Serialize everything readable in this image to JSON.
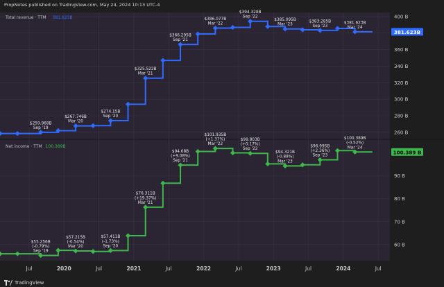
{
  "header": {
    "published_text": "PropNotes published on TradingView.com, May 24, 2024 10:13 UTC-4"
  },
  "brand": {
    "logo_icon": "tradingview-logo-icon",
    "name": "TradingView"
  },
  "colors": {
    "background": "#1e1e1e",
    "plot_background": "#2b2533",
    "revenue": "#2f6bff",
    "net_income": "#3eb84a",
    "grid": "#3a3441",
    "axis_text": "#c9c9c9"
  },
  "chart_data": [
    {
      "type": "line",
      "step": true,
      "panel": "top",
      "title": "Total revenue · TTM",
      "title_value": "381.623B",
      "last_value_label": "381.623B",
      "ylim": [
        254,
        405
      ],
      "y_ticks": [
        260,
        280,
        300,
        320,
        340,
        360,
        380,
        400
      ],
      "y_tick_labels": [
        "260 B",
        "280 B",
        "300 B",
        "320 B",
        "340 B",
        "360 B",
        "380 B",
        "400 B"
      ],
      "series": [
        {
          "x": [
            "2019-02",
            "2019-05",
            "2019-09",
            "2019-12",
            "2020-03",
            "2020-06",
            "2020-09",
            "2020-12",
            "2021-03",
            "2021-06",
            "2021-09",
            "2021-12",
            "2022-03",
            "2022-06",
            "2022-09",
            "2022-12",
            "2023-03",
            "2023-06",
            "2023-09",
            "2023-12",
            "2024-03",
            "2024-06"
          ],
          "values": [
            258.5,
            258.5,
            259.968,
            262.0,
            267.746,
            268.0,
            274.15,
            294.0,
            325.522,
            347.0,
            366.295,
            379.0,
            386.077,
            387.0,
            394.328,
            388.0,
            385.095,
            384.0,
            383.285,
            385.7,
            381.623,
            381.623
          ]
        }
      ],
      "annotations": [
        {
          "value": "$259.968B",
          "period": "Sep '19"
        },
        {
          "value": "$267.746B",
          "period": "Mar '20"
        },
        {
          "value": "$274.15B",
          "period": "Sep '20"
        },
        {
          "value": "$325.522B",
          "period": "Mar '21"
        },
        {
          "value": "$366.295B",
          "period": "Sep '21"
        },
        {
          "value": "$386.077B",
          "period": "Mar '22"
        },
        {
          "value": "$394.328B",
          "period": "Sep '22"
        },
        {
          "value": "$385.095B",
          "period": "Mar '23"
        },
        {
          "value": "$383.285B",
          "period": "Sep '23"
        },
        {
          "value": "$381.623B",
          "period": "Mar '24"
        }
      ]
    },
    {
      "type": "line",
      "step": true,
      "panel": "bottom",
      "title": "Net income · TTM",
      "title_value": "100.389B",
      "last_value_label": "100.389 B",
      "ylim": [
        53,
        105
      ],
      "y_ticks": [
        60,
        70,
        80,
        90
      ],
      "y_tick_labels": [
        "60 B",
        "70 B",
        "80 B",
        "90 B"
      ],
      "series": [
        {
          "x": [
            "2019-02",
            "2019-05",
            "2019-09",
            "2019-12",
            "2020-03",
            "2020-06",
            "2020-09",
            "2020-12",
            "2021-03",
            "2021-06",
            "2021-09",
            "2021-12",
            "2022-03",
            "2022-06",
            "2022-09",
            "2022-12",
            "2023-03",
            "2023-06",
            "2023-09",
            "2023-12",
            "2024-03",
            "2024-06"
          ],
          "values": [
            56.0,
            56.0,
            55.256,
            57.5,
            57.215,
            57.0,
            57.411,
            63.9,
            76.311,
            86.8,
            94.68,
            100.6,
            101.935,
            100.0,
            99.803,
            95.2,
            94.321,
            94.8,
            96.995,
            101.0,
            100.389,
            100.389
          ]
        }
      ],
      "annotations": [
        {
          "value": "$55.256B",
          "change": "(-0.79%)",
          "period": "Sep '19"
        },
        {
          "value": "$57.215B",
          "change": "(-0.54%)",
          "period": "Mar '20"
        },
        {
          "value": "$57.411B",
          "change": "(-1.73%)",
          "period": "Sep '20"
        },
        {
          "value": "$76.311B",
          "change": "(+19.37%)",
          "period": "Mar '21"
        },
        {
          "value": "$94.68B",
          "change": "(+9.08%)",
          "period": "Sep '21"
        },
        {
          "value": "$101.935B",
          "change": "(+1.37%)",
          "period": "Mar '22"
        },
        {
          "value": "$99.803B",
          "change": "(+0.17%)",
          "period": "Sep '22"
        },
        {
          "value": "$94.321B",
          "change": "(-0.89%)",
          "period": "Mar '23"
        },
        {
          "value": "$96.995B",
          "change": "(+2.36%)",
          "period": "Sep '23"
        },
        {
          "value": "$100.389B",
          "change": "(-0.52%)",
          "period": "Mar '24"
        }
      ]
    }
  ],
  "x_axis": {
    "labels": [
      {
        "text": "Jul",
        "date": "2019-07"
      },
      {
        "text": "2020",
        "date": "2020-01",
        "bold": true
      },
      {
        "text": "Jul",
        "date": "2020-07"
      },
      {
        "text": "2021",
        "date": "2021-01",
        "bold": true
      },
      {
        "text": "Jul",
        "date": "2021-07"
      },
      {
        "text": "2022",
        "date": "2022-01",
        "bold": true
      },
      {
        "text": "Jul",
        "date": "2022-07"
      },
      {
        "text": "2023",
        "date": "2023-01",
        "bold": true
      },
      {
        "text": "Jul",
        "date": "2023-07"
      },
      {
        "text": "2024",
        "date": "2024-01",
        "bold": true
      },
      {
        "text": "Jul",
        "date": "2024-07"
      }
    ]
  }
}
